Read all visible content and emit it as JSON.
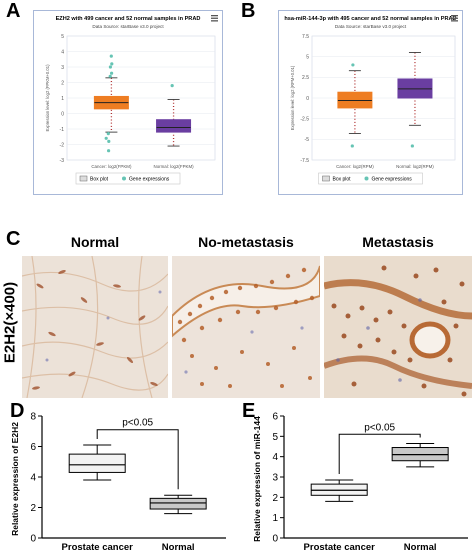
{
  "panels": {
    "a": "A",
    "b": "B",
    "c": "C",
    "d": "D",
    "e": "E"
  },
  "colors": {
    "cancer_box": "#ee7d22",
    "normal_box": "#6a3ea1",
    "median": "#222222",
    "whisker_dot": "#b03030",
    "outlier": "#66c4b4",
    "panel_border": "#a8b8d8"
  },
  "icons": [
    "menu-icon",
    "legend-box-swatch-icon",
    "legend-dot-icon"
  ],
  "micrographs": {
    "side_label": "E2H2(×400)",
    "titles": [
      "Normal",
      "No-metastasis",
      "Metastasis"
    ]
  },
  "chart_data": [
    {
      "id": "A",
      "type": "box",
      "title": "EZH2 with 499 cancer and 52 normal samples in PRAD",
      "subtitle": "Data Source: starBase v3.0 project",
      "ylabel": "Expression level: log2 (FPKM+0.01)",
      "ylim": [
        -3,
        5
      ],
      "yticks": [
        -3,
        -2,
        -1,
        0,
        1,
        2,
        3,
        4,
        5
      ],
      "categories": [
        "Cancer: log2(FPKM)",
        "Normal: log2(FPKM)"
      ],
      "boxes": [
        {
          "q1": 0.3,
          "median": 0.7,
          "q3": 1.1,
          "low": -1.2,
          "high": 2.3,
          "outliers": [
            3.7,
            3.2,
            3.0,
            2.6,
            2.4,
            -1.3,
            -1.6,
            -1.8,
            -2.4
          ]
        },
        {
          "q1": -1.2,
          "median": -0.9,
          "q3": -0.4,
          "low": -2.1,
          "high": 0.9,
          "outliers": [
            1.8
          ]
        }
      ],
      "legend": [
        "Box plot",
        "Gene expressions"
      ]
    },
    {
      "id": "B",
      "type": "box",
      "title": "hsa-miR-144-3p with 495 cancer and 52 normal samples in PRAD",
      "subtitle": "Data Source: starBase v3.0 project",
      "ylabel": "Expression level: log2 (RPM+0.01)",
      "ylim": [
        -7.5,
        7.5
      ],
      "yticks": [
        -7.5,
        -5,
        -2.5,
        0,
        2.5,
        5,
        7.5
      ],
      "categories": [
        "Cancer: log2(RPM)",
        "Normal: log2(RPM)"
      ],
      "boxes": [
        {
          "q1": -1.2,
          "median": -0.3,
          "q3": 0.7,
          "low": -4.3,
          "high": 3.3,
          "outliers": [
            4.0,
            -5.8
          ]
        },
        {
          "q1": 0.0,
          "median": 1.1,
          "q3": 2.3,
          "low": -3.3,
          "high": 5.5,
          "outliers": [
            -5.8
          ]
        }
      ],
      "legend": [
        "Box plot",
        "Gene expressions"
      ]
    },
    {
      "id": "D",
      "type": "box",
      "ylabel": "Relative expression of E2H2",
      "ylim": [
        0,
        8
      ],
      "yticks": [
        0,
        2,
        4,
        6,
        8
      ],
      "categories": [
        "Prostate cancer",
        "Normal"
      ],
      "boxes": [
        {
          "low": 3.8,
          "q1": 4.3,
          "median": 4.8,
          "q3": 5.5,
          "high": 6.1
        },
        {
          "low": 1.6,
          "q1": 1.9,
          "median": 2.3,
          "q3": 2.6,
          "high": 2.8
        }
      ],
      "significance": "p<0.05",
      "bracket_y": 7.1
    },
    {
      "id": "E",
      "type": "box",
      "ylabel": "Relative expression of miR-144",
      "ylim": [
        0,
        6
      ],
      "yticks": [
        0,
        1,
        2,
        3,
        4,
        5,
        6
      ],
      "categories": [
        "Prostate cancer",
        "Normal"
      ],
      "boxes": [
        {
          "low": 1.8,
          "q1": 2.1,
          "median": 2.35,
          "q3": 2.65,
          "high": 2.85
        },
        {
          "low": 3.5,
          "q1": 3.8,
          "median": 4.1,
          "q3": 4.45,
          "high": 4.65
        }
      ],
      "significance": "p<0.05",
      "bracket_y": 5.1
    }
  ]
}
